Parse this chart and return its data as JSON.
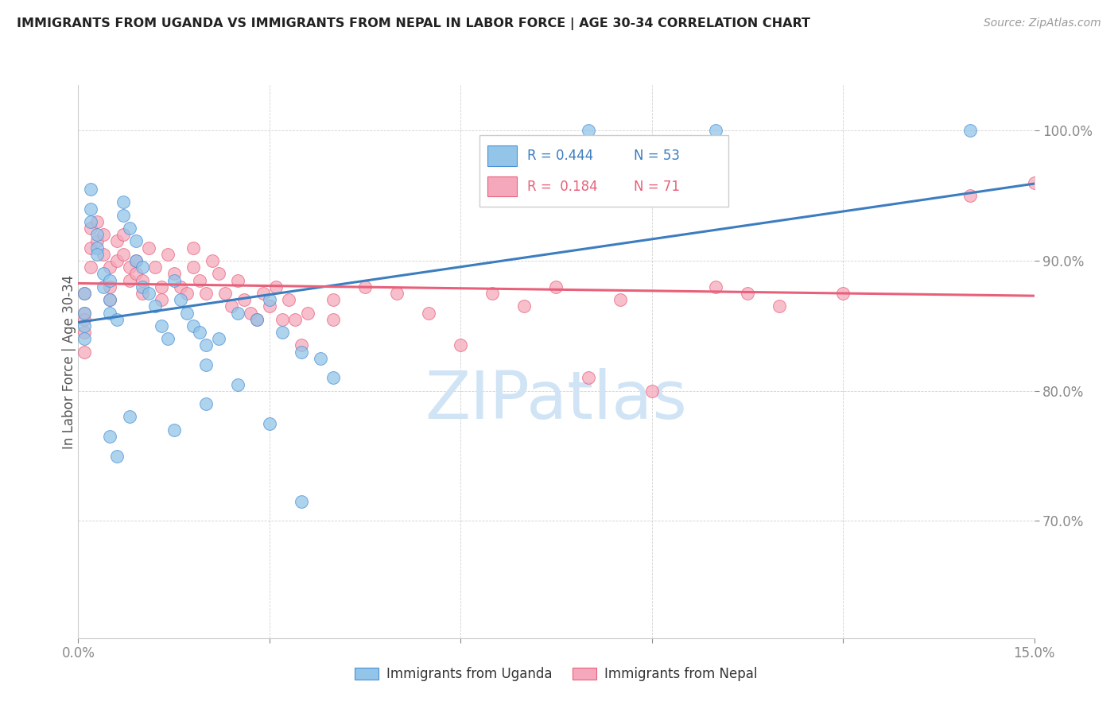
{
  "title": "IMMIGRANTS FROM UGANDA VS IMMIGRANTS FROM NEPAL IN LABOR FORCE | AGE 30-34 CORRELATION CHART",
  "source": "Source: ZipAtlas.com",
  "ylabel": "In Labor Force | Age 30-34",
  "xlim": [
    0.0,
    0.15
  ],
  "ylim": [
    61.0,
    103.5
  ],
  "legend_uganda": "Immigrants from Uganda",
  "legend_nepal": "Immigrants from Nepal",
  "R_uganda": 0.444,
  "N_uganda": 53,
  "R_nepal": 0.184,
  "N_nepal": 71,
  "color_uganda": "#92C5E8",
  "color_nepal": "#F5A8BC",
  "edge_uganda": "#4A90D9",
  "edge_nepal": "#E8607A",
  "line_uganda": "#3C7DC0",
  "line_nepal": "#E8607A",
  "background_color": "#FFFFFF",
  "watermark_color": "#D0E4F5",
  "uganda_x": [
    0.001,
    0.001,
    0.001,
    0.001,
    0.002,
    0.002,
    0.002,
    0.003,
    0.003,
    0.003,
    0.004,
    0.004,
    0.005,
    0.005,
    0.005,
    0.006,
    0.007,
    0.007,
    0.008,
    0.009,
    0.009,
    0.01,
    0.01,
    0.011,
    0.012,
    0.013,
    0.014,
    0.015,
    0.016,
    0.017,
    0.018,
    0.019,
    0.02,
    0.02,
    0.022,
    0.025,
    0.028,
    0.03,
    0.032,
    0.035,
    0.038,
    0.04,
    0.005,
    0.006,
    0.008,
    0.015,
    0.02,
    0.025,
    0.03,
    0.035,
    0.08,
    0.1,
    0.14
  ],
  "uganda_y": [
    87.5,
    86.0,
    85.0,
    84.0,
    94.0,
    95.5,
    93.0,
    92.0,
    91.0,
    90.5,
    89.0,
    88.0,
    88.5,
    87.0,
    86.0,
    85.5,
    94.5,
    93.5,
    92.5,
    91.5,
    90.0,
    89.5,
    88.0,
    87.5,
    86.5,
    85.0,
    84.0,
    88.5,
    87.0,
    86.0,
    85.0,
    84.5,
    83.5,
    82.0,
    84.0,
    86.0,
    85.5,
    87.0,
    84.5,
    83.0,
    82.5,
    81.0,
    76.5,
    75.0,
    78.0,
    77.0,
    79.0,
    80.5,
    77.5,
    71.5,
    100.0,
    100.0,
    100.0
  ],
  "nepal_x": [
    0.001,
    0.001,
    0.001,
    0.001,
    0.001,
    0.002,
    0.002,
    0.002,
    0.003,
    0.003,
    0.004,
    0.004,
    0.005,
    0.005,
    0.005,
    0.006,
    0.006,
    0.007,
    0.007,
    0.008,
    0.008,
    0.009,
    0.009,
    0.01,
    0.01,
    0.011,
    0.012,
    0.013,
    0.013,
    0.014,
    0.015,
    0.016,
    0.017,
    0.018,
    0.018,
    0.019,
    0.02,
    0.021,
    0.022,
    0.023,
    0.024,
    0.025,
    0.026,
    0.027,
    0.028,
    0.029,
    0.03,
    0.031,
    0.032,
    0.033,
    0.034,
    0.035,
    0.036,
    0.04,
    0.04,
    0.045,
    0.05,
    0.055,
    0.06,
    0.065,
    0.07,
    0.075,
    0.08,
    0.085,
    0.09,
    0.1,
    0.105,
    0.11,
    0.12,
    0.14,
    0.15
  ],
  "nepal_y": [
    87.5,
    86.0,
    85.5,
    84.5,
    83.0,
    92.5,
    91.0,
    89.5,
    93.0,
    91.5,
    92.0,
    90.5,
    89.5,
    88.0,
    87.0,
    91.5,
    90.0,
    92.0,
    90.5,
    89.5,
    88.5,
    90.0,
    89.0,
    88.5,
    87.5,
    91.0,
    89.5,
    88.0,
    87.0,
    90.5,
    89.0,
    88.0,
    87.5,
    91.0,
    89.5,
    88.5,
    87.5,
    90.0,
    89.0,
    87.5,
    86.5,
    88.5,
    87.0,
    86.0,
    85.5,
    87.5,
    86.5,
    88.0,
    85.5,
    87.0,
    85.5,
    83.5,
    86.0,
    87.0,
    85.5,
    88.0,
    87.5,
    86.0,
    83.5,
    87.5,
    86.5,
    88.0,
    81.0,
    87.0,
    80.0,
    88.0,
    87.5,
    86.5,
    87.5,
    95.0,
    96.0
  ]
}
